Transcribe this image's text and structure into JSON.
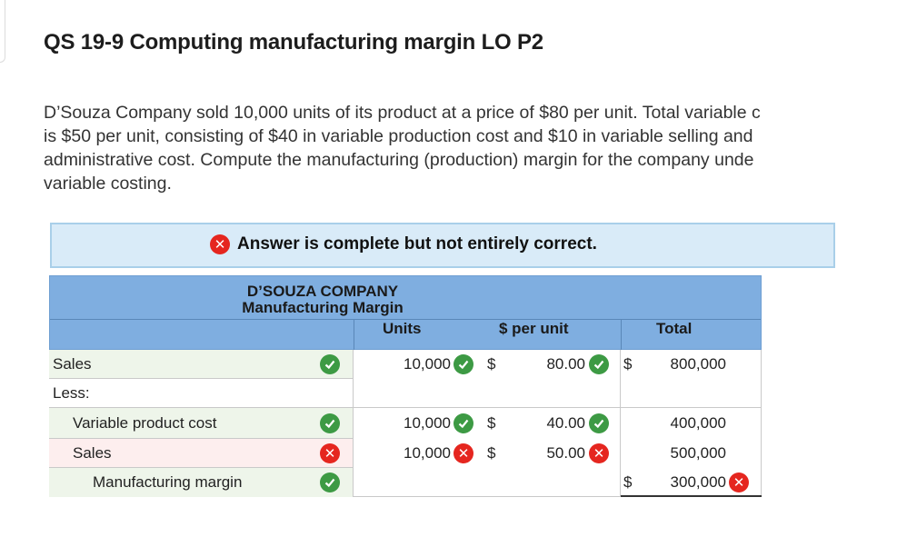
{
  "title": "QS 19-9 Computing manufacturing margin LO P2",
  "question_lines": [
    "D’Souza Company sold 10,000 units of its product at a price of $80 per unit. Total variable c",
    "is $50 per unit, consisting of $40 in variable production cost and $10 in variable selling and",
    "administrative cost. Compute the manufacturing (production) margin for the company unde",
    "variable costing."
  ],
  "banner": {
    "text": "Answer is complete but not entirely correct."
  },
  "table": {
    "company": "D’SOUZA COMPANY",
    "subtitle": "Manufacturing Margin",
    "col_units": "Units",
    "col_per_unit": "$ per unit",
    "col_total": "Total",
    "rows": [
      {
        "label": "Sales",
        "units": "10,000",
        "per_unit": "80.00",
        "total": "800,000"
      },
      {
        "label": "Less:"
      },
      {
        "label": "Variable product cost",
        "units": "10,000",
        "per_unit": "40.00",
        "total": "400,000"
      },
      {
        "label": "Sales",
        "units": "10,000",
        "per_unit": "50.00",
        "total": "500,000"
      },
      {
        "label": "Manufacturing margin",
        "total": "300,000"
      }
    ],
    "dollar": "$"
  },
  "colors": {
    "correct": "#3d9a44",
    "incorrect": "#e5261f",
    "header": "#7faee0",
    "banner": "#d9ebf8"
  }
}
